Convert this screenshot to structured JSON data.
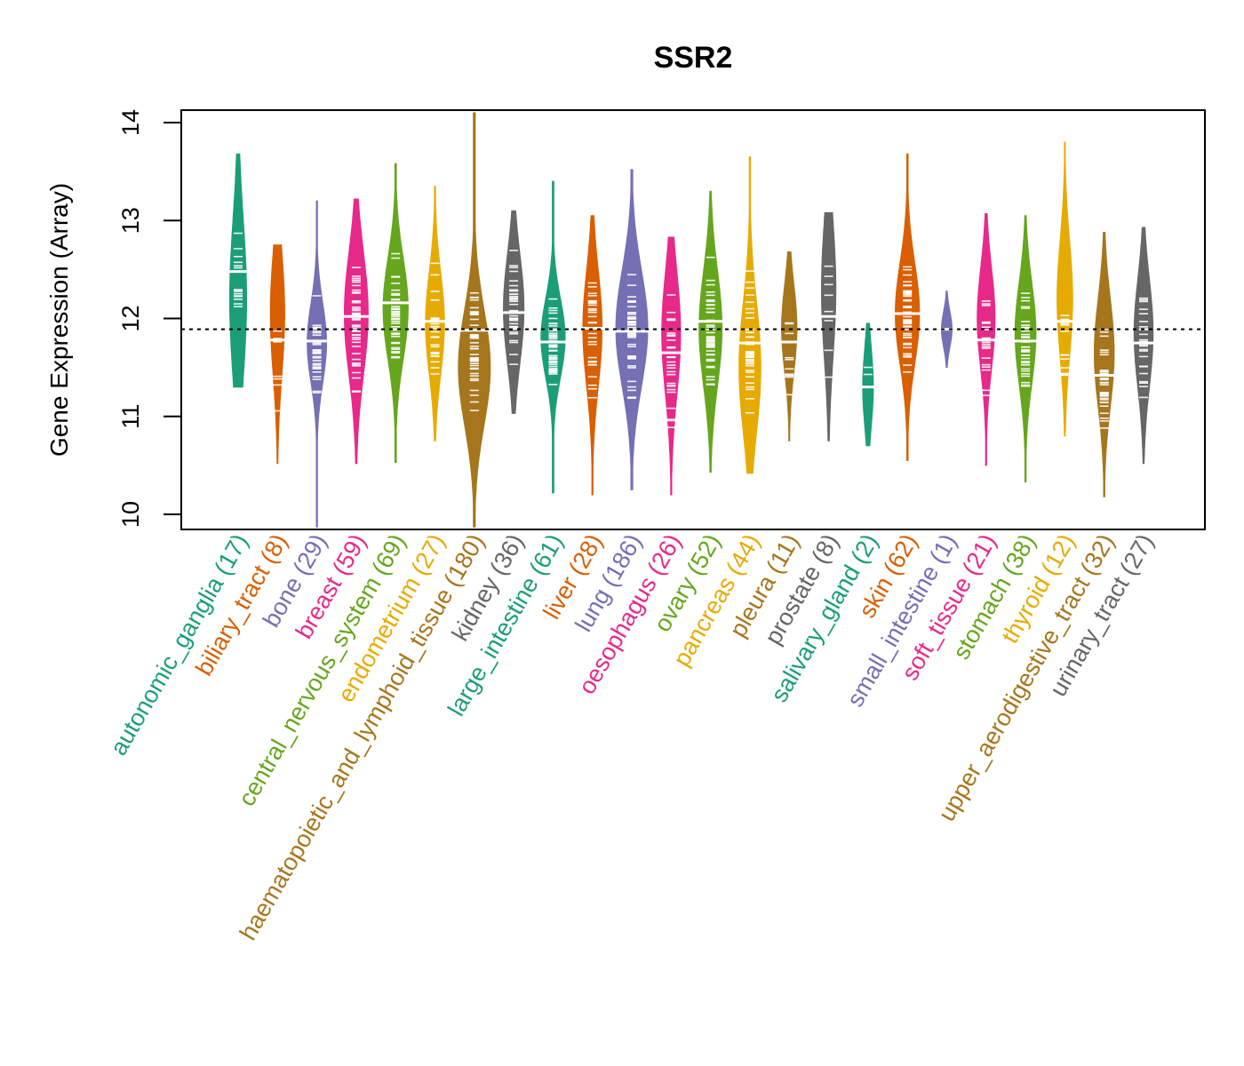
{
  "chart_data": {
    "type": "violin",
    "title": "SSR2",
    "xlabel": "",
    "ylabel": "Gene Expression (Array)",
    "ylim": [
      9.87,
      14.1
    ],
    "yticks": [
      10,
      11,
      12,
      13,
      14
    ],
    "reference_line": {
      "value": 11.89,
      "style": "dotted",
      "color": "#000000"
    },
    "grid": false,
    "legend": "none",
    "categories": [
      {
        "name": "autonomic_ganglia",
        "n": 17,
        "color": "#1B9E77",
        "median": 12.48,
        "min": 11.3,
        "max": 13.68,
        "q1": 11.95,
        "q3": 13.05,
        "mode": 12.2
      },
      {
        "name": "biliary_tract",
        "n": 8,
        "color": "#D95F02",
        "median": 11.78,
        "min": 10.52,
        "max": 12.75,
        "q1": 11.2,
        "q3": 12.05,
        "mode": 12.05
      },
      {
        "name": "bone",
        "n": 29,
        "color": "#7570B3",
        "median": 11.77,
        "min": 9.87,
        "max": 13.2,
        "q1": 11.45,
        "q3": 12.0,
        "mode": 11.75
      },
      {
        "name": "breast",
        "n": 59,
        "color": "#E7298A",
        "median": 12.02,
        "min": 10.52,
        "max": 13.22,
        "q1": 11.5,
        "q3": 12.35,
        "mode": 12.05
      },
      {
        "name": "central_nervous_system",
        "n": 69,
        "color": "#66A61E",
        "median": 12.16,
        "min": 10.53,
        "max": 13.58,
        "q1": 11.75,
        "q3": 12.45,
        "mode": 12.1
      },
      {
        "name": "endometrium",
        "n": 27,
        "color": "#E6AB02",
        "median": 11.97,
        "min": 10.75,
        "max": 13.35,
        "q1": 11.6,
        "q3": 12.3,
        "mode": 11.95
      },
      {
        "name": "haematopoietic_and_lymphoid_tissue",
        "n": 180,
        "color": "#A6761D",
        "median": 11.88,
        "min": 9.87,
        "max": 14.1,
        "q1": 11.3,
        "q3": 12.1,
        "mode": 11.5
      },
      {
        "name": "kidney",
        "n": 36,
        "color": "#666666",
        "median": 12.06,
        "min": 11.03,
        "max": 13.1,
        "q1": 11.75,
        "q3": 12.5,
        "mode": 12.1
      },
      {
        "name": "large_intestine",
        "n": 61,
        "color": "#1B9E77",
        "median": 11.76,
        "min": 10.22,
        "max": 13.4,
        "q1": 11.45,
        "q3": 12.0,
        "mode": 11.8
      },
      {
        "name": "liver",
        "n": 28,
        "color": "#D95F02",
        "median": 11.9,
        "min": 10.2,
        "max": 13.05,
        "q1": 11.5,
        "q3": 12.3,
        "mode": 11.9
      },
      {
        "name": "lung",
        "n": 186,
        "color": "#7570B3",
        "median": 11.87,
        "min": 10.25,
        "max": 13.52,
        "q1": 11.45,
        "q3": 12.25,
        "mode": 11.9
      },
      {
        "name": "oesophagus",
        "n": 26,
        "color": "#E7298A",
        "median": 11.65,
        "min": 10.2,
        "max": 12.83,
        "q1": 11.1,
        "q3": 11.95,
        "mode": 11.85
      },
      {
        "name": "ovary",
        "n": 52,
        "color": "#66A61E",
        "median": 11.97,
        "min": 10.43,
        "max": 13.3,
        "q1": 11.55,
        "q3": 12.35,
        "mode": 11.9
      },
      {
        "name": "pancreas",
        "n": 44,
        "color": "#E6AB02",
        "median": 11.75,
        "min": 10.42,
        "max": 13.65,
        "q1": 11.3,
        "q3": 12.2,
        "mode": 11.5
      },
      {
        "name": "pleura",
        "n": 11,
        "color": "#A6761D",
        "median": 11.76,
        "min": 10.75,
        "max": 12.68,
        "q1": 11.4,
        "q3": 12.0,
        "mode": 11.9
      },
      {
        "name": "prostate",
        "n": 8,
        "color": "#666666",
        "median": 12.02,
        "min": 10.75,
        "max": 13.08,
        "q1": 11.5,
        "q3": 12.45,
        "mode": 12.3
      },
      {
        "name": "salivary_gland",
        "n": 2,
        "color": "#1B9E77",
        "median": 11.3,
        "min": 10.7,
        "max": 11.95,
        "q1": 11.05,
        "q3": 11.6,
        "mode": 11.3
      },
      {
        "name": "skin",
        "n": 62,
        "color": "#D95F02",
        "median": 12.05,
        "min": 10.55,
        "max": 13.68,
        "q1": 11.65,
        "q3": 12.35,
        "mode": 12.05
      },
      {
        "name": "small_intestine",
        "n": 1,
        "color": "#7570B3",
        "median": 11.89,
        "min": 11.5,
        "max": 12.28,
        "q1": 11.89,
        "q3": 11.89,
        "mode": 11.89
      },
      {
        "name": "soft_tissue",
        "n": 21,
        "color": "#E7298A",
        "median": 11.78,
        "min": 10.5,
        "max": 13.07,
        "q1": 11.4,
        "q3": 12.1,
        "mode": 12.0
      },
      {
        "name": "stomach",
        "n": 38,
        "color": "#66A61E",
        "median": 11.77,
        "min": 10.33,
        "max": 13.05,
        "q1": 11.4,
        "q3": 12.1,
        "mode": 11.85
      },
      {
        "name": "thyroid",
        "n": 12,
        "color": "#E6AB02",
        "median": 11.97,
        "min": 10.8,
        "max": 13.8,
        "q1": 11.5,
        "q3": 12.3,
        "mode": 12.2
      },
      {
        "name": "upper_aerodigestive_tract",
        "n": 32,
        "color": "#A6761D",
        "median": 11.42,
        "min": 10.18,
        "max": 12.88,
        "q1": 11.0,
        "q3": 11.75,
        "mode": 11.65
      },
      {
        "name": "urinary_tract",
        "n": 27,
        "color": "#666666",
        "median": 11.75,
        "min": 10.52,
        "max": 12.93,
        "q1": 11.35,
        "q3": 12.1,
        "mode": 11.85
      }
    ]
  }
}
